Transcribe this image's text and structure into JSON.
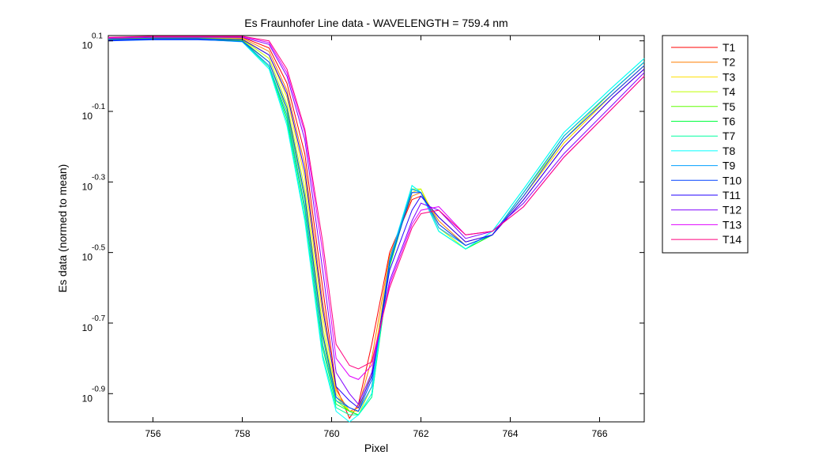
{
  "chart_data": {
    "type": "line",
    "title": "Es Fraunhofer Line data - WAVELENGTH = 759.4 nm",
    "xlabel": "Pixel",
    "ylabel": "Es data (normed to mean)",
    "xlim": [
      755,
      767
    ],
    "ylim_log10": [
      -0.98,
      0.115
    ],
    "yscale": "log",
    "x_ticks": [
      756,
      758,
      760,
      762,
      764,
      766
    ],
    "x_tick_labels": [
      "756",
      "758",
      "760",
      "762",
      "764",
      "766"
    ],
    "y_ticks": [
      {
        "base": "10",
        "exp": "0.1",
        "log10": 0.1
      },
      {
        "base": "10",
        "exp": "-0.1",
        "log10": -0.1
      },
      {
        "base": "10",
        "exp": "-0.3",
        "log10": -0.3
      },
      {
        "base": "10",
        "exp": "-0.5",
        "log10": -0.5
      },
      {
        "base": "10",
        "exp": "-0.7",
        "log10": -0.7
      },
      {
        "base": "10",
        "exp": "-0.9",
        "log10": -0.9
      }
    ],
    "legend_position": "outside-right",
    "x": [
      755.0,
      756.0,
      757.0,
      758.0,
      758.6,
      759.0,
      759.4,
      759.8,
      760.1,
      760.4,
      760.6,
      760.9,
      761.3,
      761.8,
      762.0,
      762.4,
      763.0,
      763.6,
      764.3,
      765.2,
      766.3,
      767.0
    ],
    "series": [
      {
        "name": "T1",
        "color": "#ff0000",
        "values": [
          0.109,
          0.112,
          0.112,
          0.11,
          0.08,
          -0.02,
          -0.22,
          -0.6,
          -0.88,
          -0.97,
          -0.93,
          -0.76,
          -0.5,
          -0.35,
          -0.34,
          -0.4,
          -0.47,
          -0.45,
          -0.35,
          -0.2,
          -0.06,
          0.02
        ]
      },
      {
        "name": "T2",
        "color": "#ff7f00",
        "values": [
          0.108,
          0.111,
          0.111,
          0.108,
          0.07,
          -0.04,
          -0.25,
          -0.64,
          -0.89,
          -0.95,
          -0.94,
          -0.8,
          -0.51,
          -0.34,
          -0.33,
          -0.41,
          -0.48,
          -0.45,
          -0.34,
          -0.19,
          -0.05,
          0.03
        ]
      },
      {
        "name": "T3",
        "color": "#ffdf00",
        "values": [
          0.107,
          0.11,
          0.11,
          0.106,
          0.06,
          -0.06,
          -0.29,
          -0.68,
          -0.9,
          -0.95,
          -0.95,
          -0.84,
          -0.52,
          -0.33,
          -0.32,
          -0.42,
          -0.48,
          -0.45,
          -0.34,
          -0.19,
          -0.05,
          0.03
        ]
      },
      {
        "name": "T4",
        "color": "#bfff00",
        "values": [
          0.106,
          0.109,
          0.109,
          0.104,
          0.05,
          -0.08,
          -0.32,
          -0.71,
          -0.91,
          -0.95,
          -0.96,
          -0.88,
          -0.53,
          -0.32,
          -0.32,
          -0.43,
          -0.49,
          -0.45,
          -0.33,
          -0.18,
          -0.04,
          0.04
        ]
      },
      {
        "name": "T5",
        "color": "#5fff00",
        "values": [
          0.105,
          0.108,
          0.108,
          0.102,
          0.04,
          -0.1,
          -0.35,
          -0.74,
          -0.92,
          -0.95,
          -0.96,
          -0.9,
          -0.54,
          -0.32,
          -0.33,
          -0.44,
          -0.49,
          -0.45,
          -0.33,
          -0.17,
          -0.04,
          0.04
        ]
      },
      {
        "name": "T6",
        "color": "#00ff3f",
        "values": [
          0.104,
          0.107,
          0.107,
          0.1,
          0.03,
          -0.12,
          -0.38,
          -0.77,
          -0.93,
          -0.95,
          -0.96,
          -0.91,
          -0.54,
          -0.32,
          -0.33,
          -0.44,
          -0.49,
          -0.45,
          -0.33,
          -0.17,
          -0.04,
          0.04
        ]
      },
      {
        "name": "T7",
        "color": "#00ff9f",
        "values": [
          0.103,
          0.106,
          0.106,
          0.098,
          0.025,
          -0.13,
          -0.4,
          -0.79,
          -0.94,
          -0.96,
          -0.96,
          -0.91,
          -0.53,
          -0.31,
          -0.33,
          -0.44,
          -0.49,
          -0.44,
          -0.32,
          -0.16,
          -0.03,
          0.05
        ]
      },
      {
        "name": "T8",
        "color": "#00ffff",
        "values": [
          0.102,
          0.105,
          0.105,
          0.097,
          0.02,
          -0.14,
          -0.41,
          -0.8,
          -0.95,
          -0.98,
          -0.96,
          -0.9,
          -0.52,
          -0.31,
          -0.33,
          -0.44,
          -0.49,
          -0.44,
          -0.32,
          -0.16,
          -0.03,
          0.05
        ]
      },
      {
        "name": "T9",
        "color": "#00a0ff",
        "values": [
          0.101,
          0.104,
          0.104,
          0.098,
          0.03,
          -0.11,
          -0.37,
          -0.76,
          -0.92,
          -0.94,
          -0.95,
          -0.88,
          -0.52,
          -0.32,
          -0.33,
          -0.43,
          -0.48,
          -0.45,
          -0.33,
          -0.17,
          -0.04,
          0.04
        ]
      },
      {
        "name": "T10",
        "color": "#0040ff",
        "values": [
          0.1,
          0.103,
          0.103,
          0.099,
          0.04,
          -0.09,
          -0.34,
          -0.73,
          -0.91,
          -0.94,
          -0.95,
          -0.86,
          -0.53,
          -0.33,
          -0.33,
          -0.42,
          -0.48,
          -0.45,
          -0.34,
          -0.18,
          -0.05,
          0.03
        ]
      },
      {
        "name": "T11",
        "color": "#2000ff",
        "values": [
          0.103,
          0.106,
          0.106,
          0.104,
          0.06,
          -0.05,
          -0.27,
          -0.66,
          -0.88,
          -0.92,
          -0.94,
          -0.85,
          -0.55,
          -0.38,
          -0.34,
          -0.4,
          -0.47,
          -0.45,
          -0.35,
          -0.2,
          -0.06,
          0.02
        ]
      },
      {
        "name": "T12",
        "color": "#8000ff",
        "values": [
          0.107,
          0.11,
          0.11,
          0.11,
          0.09,
          0.0,
          -0.18,
          -0.55,
          -0.84,
          -0.9,
          -0.93,
          -0.84,
          -0.58,
          -0.41,
          -0.36,
          -0.38,
          -0.46,
          -0.44,
          -0.36,
          -0.22,
          -0.08,
          0.01
        ]
      },
      {
        "name": "T13",
        "color": "#e000ff",
        "values": [
          0.109,
          0.112,
          0.112,
          0.112,
          0.095,
          0.01,
          -0.16,
          -0.5,
          -0.8,
          -0.85,
          -0.86,
          -0.82,
          -0.59,
          -0.42,
          -0.38,
          -0.37,
          -0.45,
          -0.44,
          -0.37,
          -0.23,
          -0.09,
          0.0
        ]
      },
      {
        "name": "T14",
        "color": "#ff007f",
        "values": [
          0.11,
          0.113,
          0.113,
          0.113,
          0.1,
          0.02,
          -0.15,
          -0.47,
          -0.76,
          -0.82,
          -0.83,
          -0.81,
          -0.6,
          -0.43,
          -0.39,
          -0.38,
          -0.45,
          -0.44,
          -0.37,
          -0.23,
          -0.09,
          0.0
        ]
      }
    ]
  }
}
